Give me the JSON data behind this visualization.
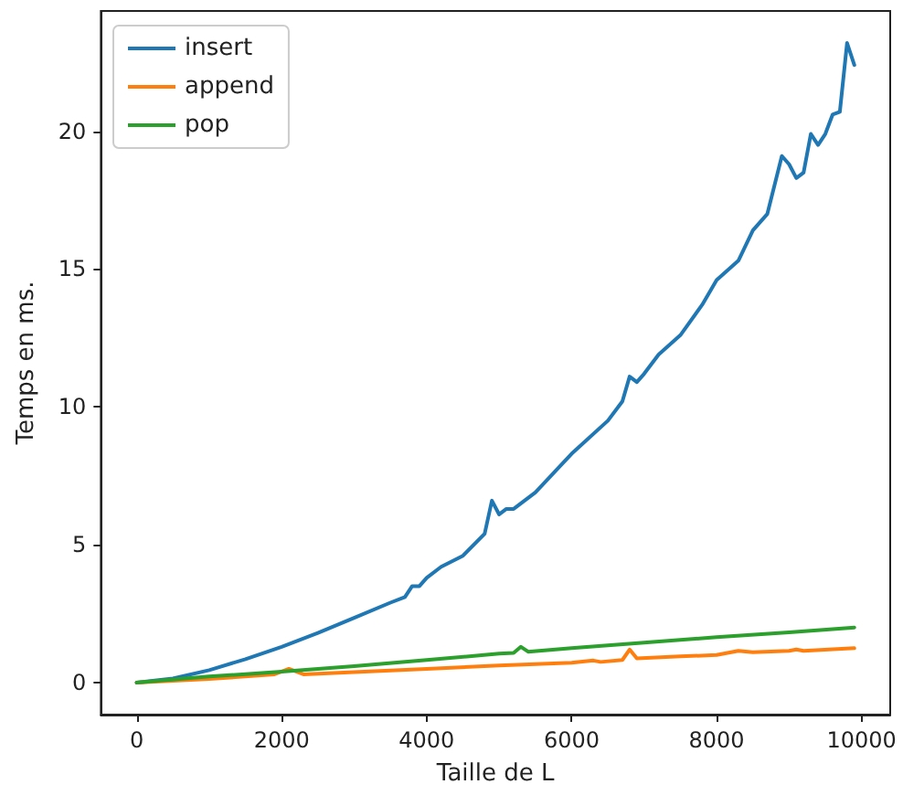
{
  "chart_data": {
    "type": "line",
    "xlabel": "Taille de L",
    "ylabel": "Temps en ms.",
    "xlim": [
      -495,
      10395
    ],
    "ylim": [
      -1.16,
      24.36
    ],
    "xticks": [
      0,
      2000,
      4000,
      6000,
      8000,
      10000
    ],
    "yticks": [
      0,
      5,
      10,
      15,
      20
    ],
    "grid": false,
    "legend": "top left",
    "marker": "none",
    "line_style": "solid",
    "series": [
      {
        "name": "insert",
        "color": "#1f77b4",
        "x": [
          0,
          500,
          1000,
          1500,
          2000,
          2500,
          3000,
          3500,
          3700,
          3800,
          3900,
          4000,
          4200,
          4500,
          4800,
          4900,
          5000,
          5100,
          5200,
          5500,
          6000,
          6500,
          6700,
          6800,
          6900,
          7000,
          7200,
          7500,
          7800,
          8000,
          8300,
          8500,
          8700,
          8900,
          9000,
          9100,
          9200,
          9300,
          9400,
          9500,
          9600,
          9700,
          9800,
          9900
        ],
        "values": [
          0,
          0.15,
          0.45,
          0.85,
          1.3,
          1.8,
          2.35,
          2.9,
          3.1,
          3.5,
          3.5,
          3.8,
          4.2,
          4.6,
          5.4,
          6.6,
          6.1,
          6.3,
          6.3,
          6.9,
          8.3,
          9.5,
          10.2,
          11.1,
          10.9,
          11.2,
          11.9,
          12.6,
          13.7,
          14.6,
          15.3,
          16.4,
          17.0,
          19.1,
          18.8,
          18.3,
          18.5,
          19.9,
          19.5,
          19.9,
          20.6,
          20.7,
          23.2,
          22.4
        ]
      },
      {
        "name": "append",
        "color": "#ff7f0e",
        "x": [
          0,
          1000,
          1900,
          2100,
          2300,
          3000,
          4000,
          5000,
          6000,
          6300,
          6400,
          6700,
          6800,
          6900,
          7500,
          8000,
          8300,
          8500,
          9000,
          9100,
          9200,
          9900
        ],
        "values": [
          0,
          0.13,
          0.3,
          0.5,
          0.3,
          0.38,
          0.5,
          0.62,
          0.72,
          0.8,
          0.75,
          0.82,
          1.2,
          0.88,
          0.95,
          1.0,
          1.15,
          1.1,
          1.15,
          1.2,
          1.15,
          1.25
        ]
      },
      {
        "name": "pop",
        "color": "#2ca02c",
        "x": [
          0,
          1000,
          2000,
          3000,
          4000,
          5000,
          5200,
          5300,
          5400,
          6000,
          7000,
          8000,
          9000,
          9900
        ],
        "values": [
          0,
          0.22,
          0.4,
          0.6,
          0.82,
          1.05,
          1.08,
          1.3,
          1.12,
          1.25,
          1.45,
          1.65,
          1.82,
          2.0
        ]
      }
    ]
  }
}
